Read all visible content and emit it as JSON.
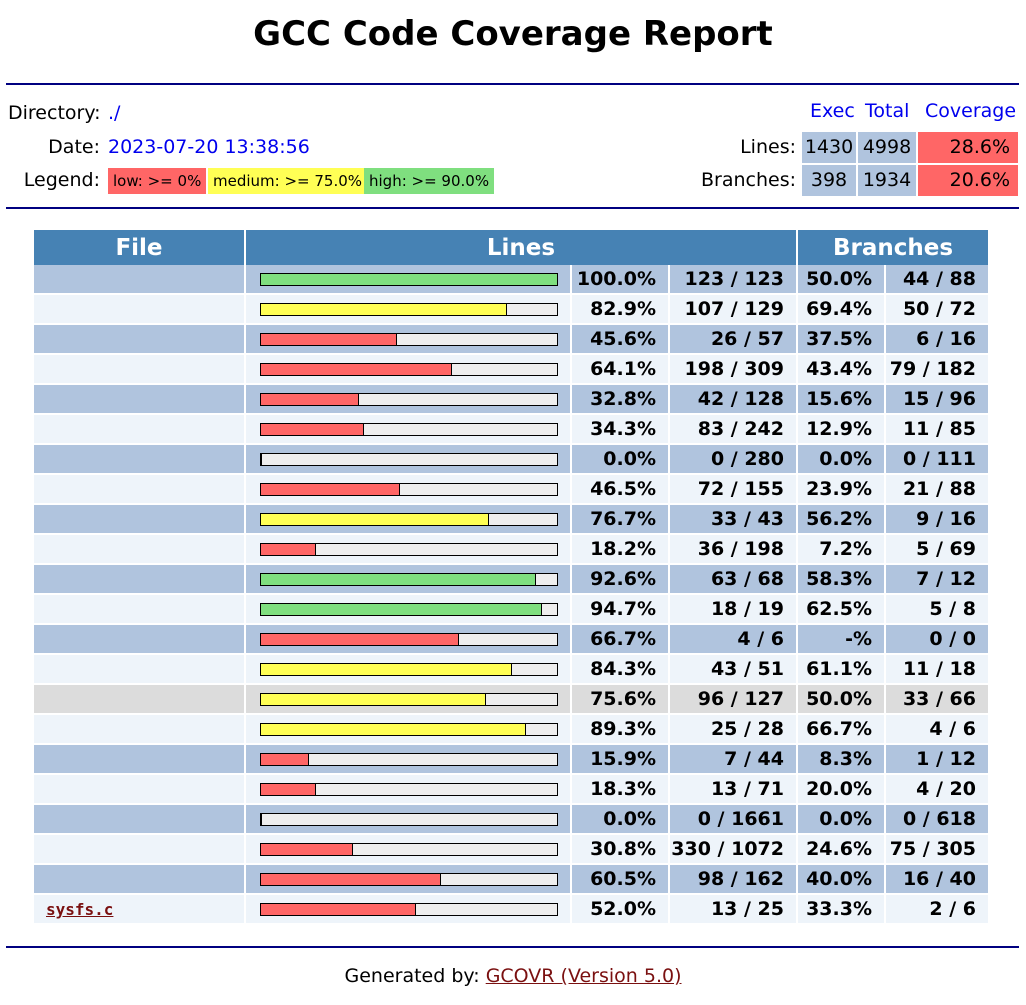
{
  "title": "GCC Code Coverage Report",
  "info": {
    "directory_label": "Directory:",
    "directory_value": "./",
    "date_label": "Date:",
    "date_value": "2023-07-20 13:38:56",
    "legend_label": "Legend:",
    "legend": [
      {
        "label": "low: >= 0%",
        "color": "#ff6666"
      },
      {
        "label": "medium: >= 75.0%",
        "color": "#ffff55"
      },
      {
        "label": "high: >= 90.0%",
        "color": "#7fdf7f"
      }
    ]
  },
  "summary": {
    "headers": {
      "exec": "Exec",
      "total": "Total",
      "coverage": "Coverage"
    },
    "lines": {
      "label": "Lines:",
      "exec": "1430",
      "total": "4998",
      "coverage": "28.6%"
    },
    "branches": {
      "label": "Branches:",
      "exec": "398",
      "total": "1934",
      "coverage": "20.6%"
    }
  },
  "table": {
    "headers": {
      "file": "File",
      "lines": "Lines",
      "branches": "Branches"
    },
    "colors": {
      "high": "#7fdf7f",
      "medium": "#ffff55",
      "low": "#ff6666"
    },
    "rows": [
      {
        "file": "",
        "line_pct": 100.0,
        "line_cov": "100.0%",
        "line_count": "123 / 123",
        "branch_cov": "50.0%",
        "branch_count": "44 / 88",
        "level": "high"
      },
      {
        "file": "",
        "line_pct": 82.9,
        "line_cov": "82.9%",
        "line_count": "107 / 129",
        "branch_cov": "69.4%",
        "branch_count": "50 / 72",
        "level": "medium"
      },
      {
        "file": "",
        "line_pct": 45.6,
        "line_cov": "45.6%",
        "line_count": "26 / 57",
        "branch_cov": "37.5%",
        "branch_count": "6 / 16",
        "level": "low"
      },
      {
        "file": "",
        "line_pct": 64.1,
        "line_cov": "64.1%",
        "line_count": "198 / 309",
        "branch_cov": "43.4%",
        "branch_count": "79 / 182",
        "level": "low"
      },
      {
        "file": "",
        "line_pct": 32.8,
        "line_cov": "32.8%",
        "line_count": "42 / 128",
        "branch_cov": "15.6%",
        "branch_count": "15 / 96",
        "level": "low"
      },
      {
        "file": "",
        "line_pct": 34.3,
        "line_cov": "34.3%",
        "line_count": "83 / 242",
        "branch_cov": "12.9%",
        "branch_count": "11 / 85",
        "level": "low"
      },
      {
        "file": "",
        "line_pct": 0.0,
        "line_cov": "0.0%",
        "line_count": "0 / 280",
        "branch_cov": "0.0%",
        "branch_count": "0 / 111",
        "level": "low"
      },
      {
        "file": "",
        "line_pct": 46.5,
        "line_cov": "46.5%",
        "line_count": "72 / 155",
        "branch_cov": "23.9%",
        "branch_count": "21 / 88",
        "level": "low"
      },
      {
        "file": "",
        "line_pct": 76.7,
        "line_cov": "76.7%",
        "line_count": "33 / 43",
        "branch_cov": "56.2%",
        "branch_count": "9 / 16",
        "level": "medium"
      },
      {
        "file": "",
        "line_pct": 18.2,
        "line_cov": "18.2%",
        "line_count": "36 / 198",
        "branch_cov": "7.2%",
        "branch_count": "5 / 69",
        "level": "low"
      },
      {
        "file": "",
        "line_pct": 92.6,
        "line_cov": "92.6%",
        "line_count": "63 / 68",
        "branch_cov": "58.3%",
        "branch_count": "7 / 12",
        "level": "high"
      },
      {
        "file": "",
        "line_pct": 94.7,
        "line_cov": "94.7%",
        "line_count": "18 / 19",
        "branch_cov": "62.5%",
        "branch_count": "5 / 8",
        "level": "high"
      },
      {
        "file": "",
        "line_pct": 66.7,
        "line_cov": "66.7%",
        "line_count": "4 / 6",
        "branch_cov": "-%",
        "branch_count": "0 / 0",
        "level": "low"
      },
      {
        "file": "",
        "line_pct": 84.3,
        "line_cov": "84.3%",
        "line_count": "43 / 51",
        "branch_cov": "61.1%",
        "branch_count": "11 / 18",
        "level": "medium"
      },
      {
        "file": "",
        "line_pct": 75.6,
        "line_cov": "75.6%",
        "line_count": "96 / 127",
        "branch_cov": "50.0%",
        "branch_count": "33 / 66",
        "level": "medium"
      },
      {
        "file": "",
        "line_pct": 89.3,
        "line_cov": "89.3%",
        "line_count": "25 / 28",
        "branch_cov": "66.7%",
        "branch_count": "4 / 6",
        "level": "medium"
      },
      {
        "file": "",
        "line_pct": 15.9,
        "line_cov": "15.9%",
        "line_count": "7 / 44",
        "branch_cov": "8.3%",
        "branch_count": "1 / 12",
        "level": "low"
      },
      {
        "file": "",
        "line_pct": 18.3,
        "line_cov": "18.3%",
        "line_count": "13 / 71",
        "branch_cov": "20.0%",
        "branch_count": "4 / 20",
        "level": "low"
      },
      {
        "file": "",
        "line_pct": 0.0,
        "line_cov": "0.0%",
        "line_count": "0 / 1661",
        "branch_cov": "0.0%",
        "branch_count": "0 / 618",
        "level": "low"
      },
      {
        "file": "",
        "line_pct": 30.8,
        "line_cov": "30.8%",
        "line_count": "330 / 1072",
        "branch_cov": "24.6%",
        "branch_count": "75 / 305",
        "level": "low"
      },
      {
        "file": "",
        "line_pct": 60.5,
        "line_cov": "60.5%",
        "line_count": "98 / 162",
        "branch_cov": "40.0%",
        "branch_count": "16 / 40",
        "level": "low"
      },
      {
        "file": "sysfs.c",
        "line_pct": 52.0,
        "line_cov": "52.0%",
        "line_count": "13 / 25",
        "branch_cov": "33.3%",
        "branch_count": "2 / 6",
        "level": "low"
      }
    ]
  },
  "footer": {
    "prefix": "Generated by: ",
    "link": "GCOVR (Version 5.0)"
  }
}
